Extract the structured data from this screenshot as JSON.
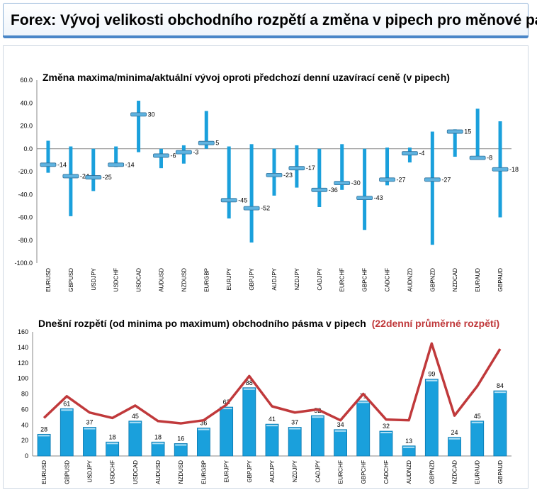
{
  "header": {
    "title": "Forex: Vývoj velikosti obchodního rozpětí a změna v pipech pro měnové páry"
  },
  "colors": {
    "bar": "#1aa0dc",
    "bar_dark": "#0a78b0",
    "marker": "#5fb3e0",
    "avg_line": "#c0393b",
    "title_red": "#c0393b",
    "panel_border": "#cfd8e3"
  },
  "chart_data": [
    {
      "type": "range",
      "title": "Změna maxima/minima/aktuální vývoj oproti předchozí denní uzavírací ceně (v pipech)",
      "categories": [
        "EURUSD",
        "GBPUSD",
        "USDJPY",
        "USDCHF",
        "USDCAD",
        "AUDUSD",
        "NZDUSD",
        "EURGBP",
        "EURJPY",
        "GBPJPY",
        "AUDJPY",
        "NZDJPY",
        "CADJPY",
        "EURCHF",
        "GBPCHF",
        "CADCHF",
        "AUDNZD",
        "GBPNZD",
        "NZDCAD",
        "EURAUD",
        "GBPAUD"
      ],
      "high": [
        7,
        2,
        0,
        2,
        42,
        0,
        3,
        33,
        2,
        4,
        0,
        3,
        0,
        4,
        0,
        1,
        1,
        15,
        17,
        35,
        24
      ],
      "low": [
        -21,
        -59,
        -37,
        -16,
        -3,
        -17,
        -13,
        0,
        -61,
        -82,
        -41,
        -34,
        -51,
        -36,
        -71,
        -32,
        -12,
        -84,
        -7,
        -9,
        -60
      ],
      "current": [
        -14,
        -24,
        -25,
        -14,
        30,
        -6,
        -3,
        5,
        -45,
        -52,
        -23,
        -17,
        -36,
        -30,
        -43,
        -27,
        -4,
        -27,
        15,
        -8,
        -18
      ],
      "current_labels": [
        "-14",
        "-24",
        "-25",
        "-14",
        "30",
        "-6",
        "-3",
        "5",
        "-45",
        "-52",
        "-23",
        "-17",
        "-36",
        "-30",
        "-43",
        "-27",
        "-4",
        "-27",
        "15",
        "-8",
        "-18"
      ],
      "ylim": [
        -100,
        60
      ],
      "yticks": [
        "60.0",
        "40.0",
        "20.0",
        "0.0",
        "-20.0",
        "-40.0",
        "-60.0",
        "-80.0",
        "-100.0"
      ],
      "grid": false
    },
    {
      "type": "bar+line",
      "title": "Dnešní rozpětí (od minima po maximum) obchodního pásma v pipech",
      "title_highlight": "(22denní průměrné rozpětí)",
      "categories": [
        "EURUSD",
        "GBPUSD",
        "USDJPY",
        "USDCHF",
        "USDCAD",
        "AUDUSD",
        "NZDUSD",
        "EURGBP",
        "EURJPY",
        "GBPJPY",
        "AUDJPY",
        "NZDJPY",
        "CADJPY",
        "EURCHF",
        "GBPCHF",
        "CADCHF",
        "AUDNZD",
        "GBPNZD",
        "NZDCAD",
        "EURAUD",
        "GBPAUD"
      ],
      "values": [
        28,
        61,
        37,
        18,
        45,
        18,
        16,
        36,
        63,
        88,
        41,
        37,
        52,
        34,
        71,
        32,
        13,
        99,
        24,
        45,
        84
      ],
      "value_labels": [
        "28",
        "61",
        "37",
        "18",
        "45",
        "18",
        "16",
        "36",
        "63",
        "88",
        "41",
        "37",
        "52",
        "34",
        "71",
        "32",
        "13",
        "99",
        "24",
        "45",
        "84"
      ],
      "average": [
        49,
        77,
        56,
        49,
        65,
        45,
        42,
        46,
        66,
        103,
        64,
        56,
        60,
        46,
        80,
        47,
        46,
        145,
        52,
        90,
        138
      ],
      "ylim": [
        0,
        160
      ],
      "yticks": [
        "160",
        "140",
        "120",
        "100",
        "80",
        "60",
        "40",
        "20",
        "0"
      ],
      "grid": false
    }
  ]
}
